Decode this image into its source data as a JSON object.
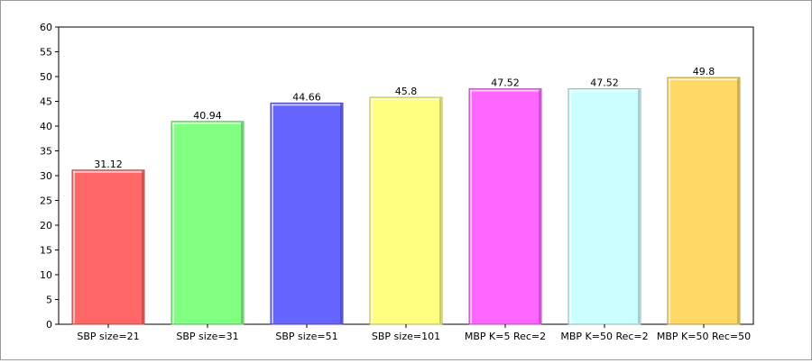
{
  "chart_data": {
    "type": "bar",
    "title": "",
    "xlabel": "",
    "ylabel": "",
    "ylim": [
      0,
      60
    ],
    "yticks": [
      "0",
      "5",
      "10",
      "15",
      "20",
      "25",
      "30",
      "35",
      "40",
      "45",
      "50",
      "55",
      "60"
    ],
    "grid": false,
    "legend": "none",
    "categories": [
      "SBP size=21",
      "SBP size=31",
      "SBP size=51",
      "SBP size=101",
      "MBP K=5 Rec=2",
      "MBP K=50 Rec=2",
      "MBP K=50 Rec=50"
    ],
    "values": [
      31.12,
      40.94,
      44.66,
      45.8,
      47.52,
      47.52,
      49.8
    ],
    "value_labels": [
      "31.12",
      "40.94",
      "44.66",
      "45.8",
      "47.52",
      "47.52",
      "49.8"
    ],
    "colors": [
      "#ff6666",
      "#80ff80",
      "#6666ff",
      "#ffff80",
      "#ff66ff",
      "#ccffff",
      "#ffd966"
    ]
  }
}
